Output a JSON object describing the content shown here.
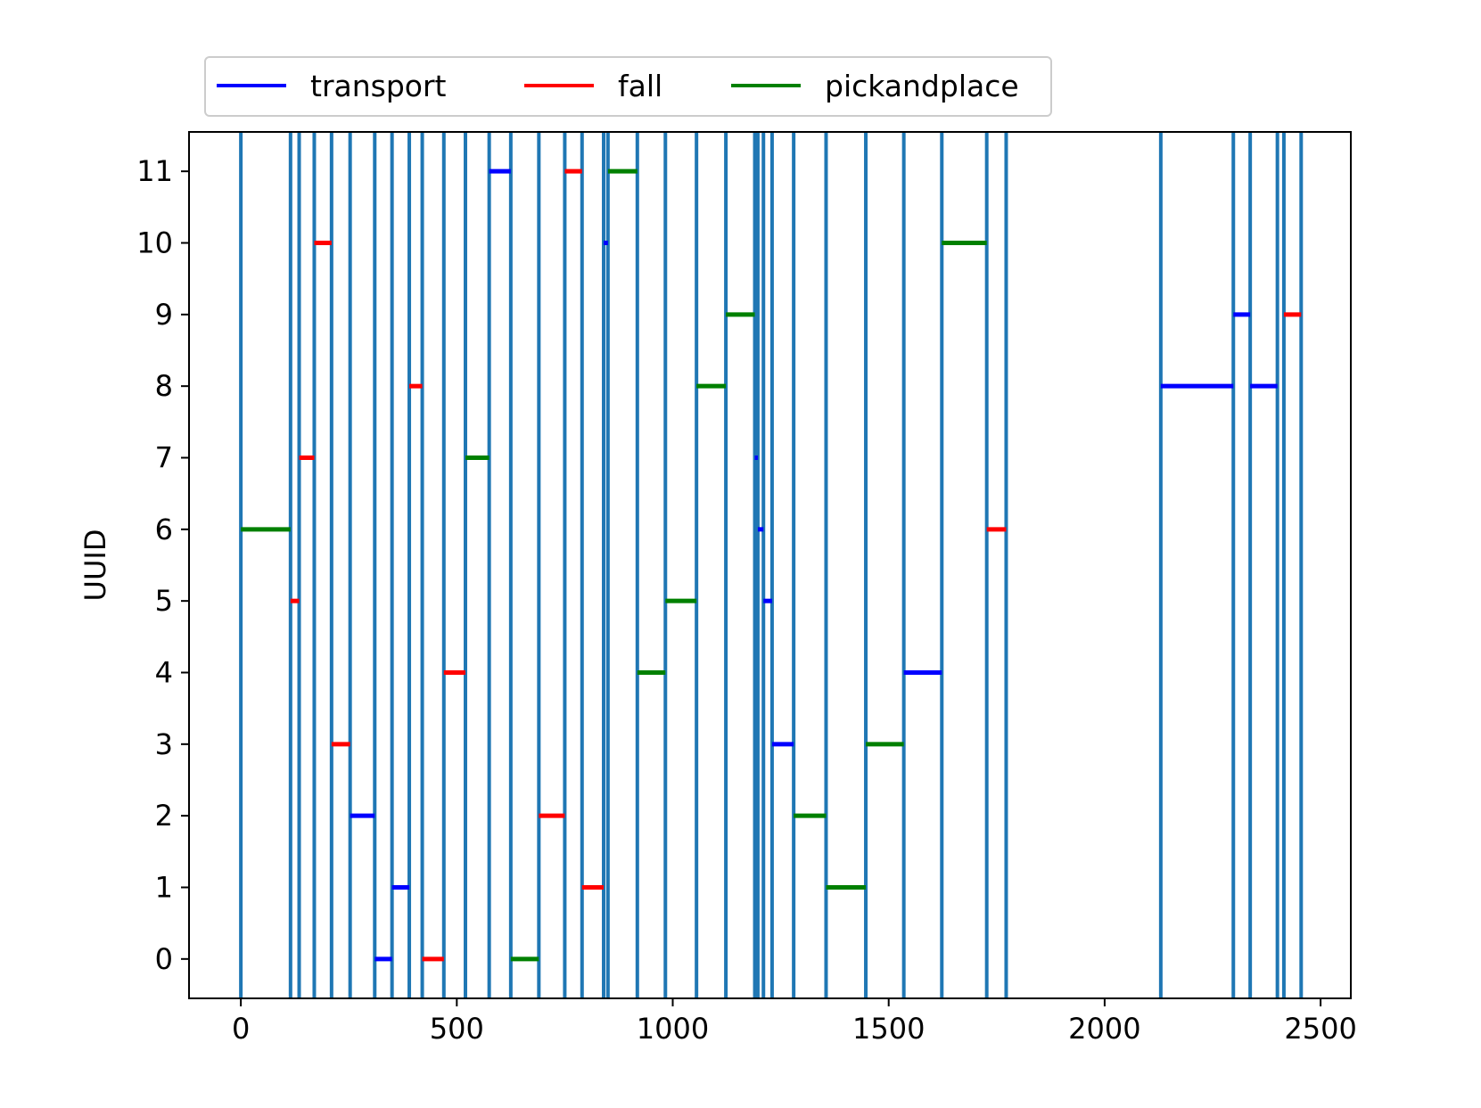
{
  "chart_data": {
    "type": "line",
    "title": "",
    "xlabel": "",
    "ylabel": "UUID",
    "xlim": [
      -120,
      2570
    ],
    "ylim": [
      -0.55,
      11.55
    ],
    "xticks": [
      0,
      500,
      1000,
      1500,
      2000,
      2500
    ],
    "yticks": [
      0,
      1,
      2,
      3,
      4,
      5,
      6,
      7,
      8,
      9,
      10,
      11
    ],
    "grid": false,
    "legend": {
      "placement": "top-left, above plot",
      "ncol": 3
    },
    "boundary_color": "#1f77b4",
    "boundaries": [
      0,
      115,
      135,
      170,
      210,
      253,
      310,
      350,
      390,
      420,
      470,
      520,
      575,
      625,
      690,
      750,
      790,
      840,
      850,
      918,
      983,
      1055,
      1123,
      1190,
      1197,
      1210,
      1230,
      1280,
      1355,
      1447,
      1535,
      1623,
      1727,
      1772,
      2130,
      2298,
      2337,
      2400,
      2415,
      2455
    ],
    "series": [
      {
        "name": "transport",
        "color": "#0000ff",
        "segments": [
          {
            "uuid": 0,
            "x": [
              310,
              350
            ]
          },
          {
            "uuid": 1,
            "x": [
              350,
              390
            ]
          },
          {
            "uuid": 2,
            "x": [
              253,
              310
            ]
          },
          {
            "uuid": 3,
            "x": [
              1230,
              1280
            ]
          },
          {
            "uuid": 4,
            "x": [
              1535,
              1623
            ]
          },
          {
            "uuid": 5,
            "x": [
              1210,
              1230
            ]
          },
          {
            "uuid": 6,
            "x": [
              1197,
              1210
            ]
          },
          {
            "uuid": 7,
            "x": [
              1190,
              1197
            ]
          },
          {
            "uuid": 8,
            "x": [
              2130,
              2298
            ]
          },
          {
            "uuid": 8,
            "x": [
              2337,
              2400
            ]
          },
          {
            "uuid": 9,
            "x": [
              2298,
              2337
            ]
          },
          {
            "uuid": 10,
            "x": [
              840,
              850
            ]
          },
          {
            "uuid": 11,
            "x": [
              575,
              625
            ]
          }
        ]
      },
      {
        "name": "fall",
        "color": "#ff0000",
        "segments": [
          {
            "uuid": 0,
            "x": [
              420,
              470
            ]
          },
          {
            "uuid": 1,
            "x": [
              790,
              840
            ]
          },
          {
            "uuid": 2,
            "x": [
              690,
              750
            ]
          },
          {
            "uuid": 3,
            "x": [
              210,
              253
            ]
          },
          {
            "uuid": 4,
            "x": [
              470,
              520
            ]
          },
          {
            "uuid": 5,
            "x": [
              115,
              135
            ]
          },
          {
            "uuid": 6,
            "x": [
              1727,
              1772
            ]
          },
          {
            "uuid": 7,
            "x": [
              135,
              170
            ]
          },
          {
            "uuid": 8,
            "x": [
              390,
              420
            ]
          },
          {
            "uuid": 9,
            "x": [
              2415,
              2455
            ]
          },
          {
            "uuid": 10,
            "x": [
              170,
              210
            ]
          },
          {
            "uuid": 11,
            "x": [
              750,
              790
            ]
          }
        ]
      },
      {
        "name": "pickandplace",
        "color": "#008000",
        "segments": [
          {
            "uuid": 0,
            "x": [
              625,
              690
            ]
          },
          {
            "uuid": 1,
            "x": [
              1355,
              1447
            ]
          },
          {
            "uuid": 2,
            "x": [
              1280,
              1355
            ]
          },
          {
            "uuid": 3,
            "x": [
              1447,
              1535
            ]
          },
          {
            "uuid": 4,
            "x": [
              918,
              983
            ]
          },
          {
            "uuid": 5,
            "x": [
              983,
              1055
            ]
          },
          {
            "uuid": 6,
            "x": [
              0,
              115
            ]
          },
          {
            "uuid": 7,
            "x": [
              520,
              575
            ]
          },
          {
            "uuid": 8,
            "x": [
              1055,
              1123
            ]
          },
          {
            "uuid": 9,
            "x": [
              1123,
              1190
            ]
          },
          {
            "uuid": 10,
            "x": [
              1623,
              1727
            ]
          },
          {
            "uuid": 11,
            "x": [
              850,
              918
            ]
          }
        ]
      }
    ]
  }
}
